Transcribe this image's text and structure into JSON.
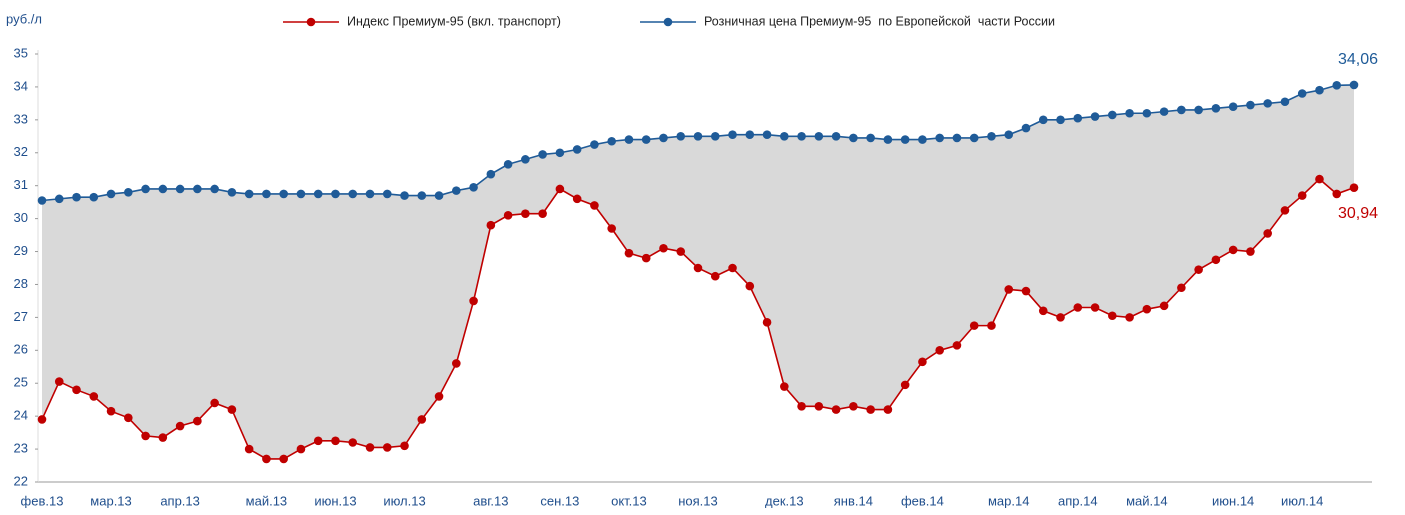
{
  "chart_data": {
    "type": "line",
    "y_label": "руб./л",
    "categories": [
      "фев.13",
      null,
      null,
      null,
      "мар.13",
      null,
      null,
      null,
      "апр.13",
      null,
      null,
      null,
      null,
      "май.13",
      null,
      null,
      null,
      "июн.13",
      null,
      null,
      null,
      "июл.13",
      null,
      null,
      null,
      null,
      "авг.13",
      null,
      null,
      null,
      "сен.13",
      null,
      null,
      null,
      "окт.13",
      null,
      null,
      null,
      "ноя.13",
      null,
      null,
      null,
      null,
      "дек.13",
      null,
      null,
      null,
      "янв.14",
      null,
      null,
      null,
      "фев.14",
      null,
      null,
      null,
      null,
      "мар.14",
      null,
      null,
      null,
      "апр.14",
      null,
      null,
      null,
      "май.14",
      null,
      null,
      null,
      null,
      "июн.14",
      null,
      null,
      null,
      "июл.14",
      null,
      null,
      null
    ],
    "series": [
      {
        "name": "Индекс Премиум-95 (вкл. транспорт)",
        "color": "#c00000",
        "values": [
          23.9,
          25.05,
          24.8,
          24.6,
          24.15,
          23.95,
          23.4,
          23.35,
          23.7,
          23.85,
          24.4,
          24.2,
          23.0,
          22.7,
          22.7,
          23.0,
          23.25,
          23.25,
          23.2,
          23.05,
          23.05,
          23.1,
          23.9,
          24.6,
          25.6,
          27.5,
          29.8,
          30.1,
          30.15,
          30.15,
          30.9,
          30.6,
          30.4,
          29.7,
          28.95,
          28.8,
          29.1,
          29.0,
          28.5,
          28.25,
          28.5,
          27.95,
          26.85,
          24.9,
          24.3,
          24.3,
          24.2,
          24.3,
          24.2,
          24.2,
          24.95,
          25.65,
          26.0,
          26.15,
          26.75,
          26.75,
          27.85,
          27.8,
          27.2,
          27.0,
          27.3,
          27.3,
          27.05,
          27.0,
          27.25,
          27.35,
          27.9,
          28.45,
          28.75,
          29.05,
          29.0,
          29.55,
          30.25,
          30.7,
          31.2,
          30.75,
          30.94
        ],
        "value_labels": [
          null,
          null,
          null,
          null,
          null,
          null,
          null,
          null,
          null,
          null,
          null,
          null,
          null,
          null,
          null,
          null,
          null,
          null,
          null,
          null,
          null,
          null,
          null,
          null,
          null,
          null,
          null,
          null,
          null,
          null,
          null,
          null,
          null,
          null,
          null,
          null,
          null,
          null,
          null,
          null,
          null,
          null,
          null,
          null,
          null,
          null,
          null,
          null,
          null,
          null,
          null,
          null,
          null,
          null,
          null,
          null,
          null,
          null,
          null,
          null,
          null,
          null,
          null,
          null,
          null,
          null,
          null,
          null,
          null,
          null,
          null,
          null,
          null,
          null,
          null,
          null,
          "30,94"
        ]
      },
      {
        "name": "Розничная цена Премиум-95  по Европейской  части России",
        "color": "#1f5b98",
        "values": [
          30.55,
          30.6,
          30.65,
          30.65,
          30.75,
          30.8,
          30.9,
          30.9,
          30.9,
          30.9,
          30.9,
          30.8,
          30.75,
          30.75,
          30.75,
          30.75,
          30.75,
          30.75,
          30.75,
          30.75,
          30.75,
          30.7,
          30.7,
          30.7,
          30.85,
          30.95,
          31.35,
          31.65,
          31.8,
          31.95,
          32.0,
          32.1,
          32.25,
          32.35,
          32.4,
          32.4,
          32.45,
          32.5,
          32.5,
          32.5,
          32.55,
          32.55,
          32.55,
          32.5,
          32.5,
          32.5,
          32.5,
          32.45,
          32.45,
          32.4,
          32.4,
          32.4,
          32.45,
          32.45,
          32.45,
          32.5,
          32.55,
          32.75,
          33.0,
          33.0,
          33.05,
          33.1,
          33.15,
          33.2,
          33.2,
          33.25,
          33.3,
          33.3,
          33.35,
          33.4,
          33.45,
          33.5,
          33.55,
          33.8,
          33.9,
          34.05,
          34.06
        ],
        "value_labels": [
          null,
          null,
          null,
          null,
          null,
          null,
          null,
          null,
          null,
          null,
          null,
          null,
          null,
          null,
          null,
          null,
          null,
          null,
          null,
          null,
          null,
          null,
          null,
          null,
          null,
          null,
          null,
          null,
          null,
          null,
          null,
          null,
          null,
          null,
          null,
          null,
          null,
          null,
          null,
          null,
          null,
          null,
          null,
          null,
          null,
          null,
          null,
          null,
          null,
          null,
          null,
          null,
          null,
          null,
          null,
          null,
          null,
          null,
          null,
          null,
          null,
          null,
          null,
          null,
          null,
          null,
          null,
          null,
          null,
          null,
          null,
          null,
          null,
          null,
          null,
          null,
          "34,06"
        ]
      }
    ],
    "area_color": "#d9d9d9",
    "ylim": [
      22,
      35
    ],
    "yticks": [
      22,
      23,
      24,
      25,
      26,
      27,
      28,
      29,
      30,
      31,
      32,
      33,
      34,
      35
    ],
    "grid": false
  }
}
